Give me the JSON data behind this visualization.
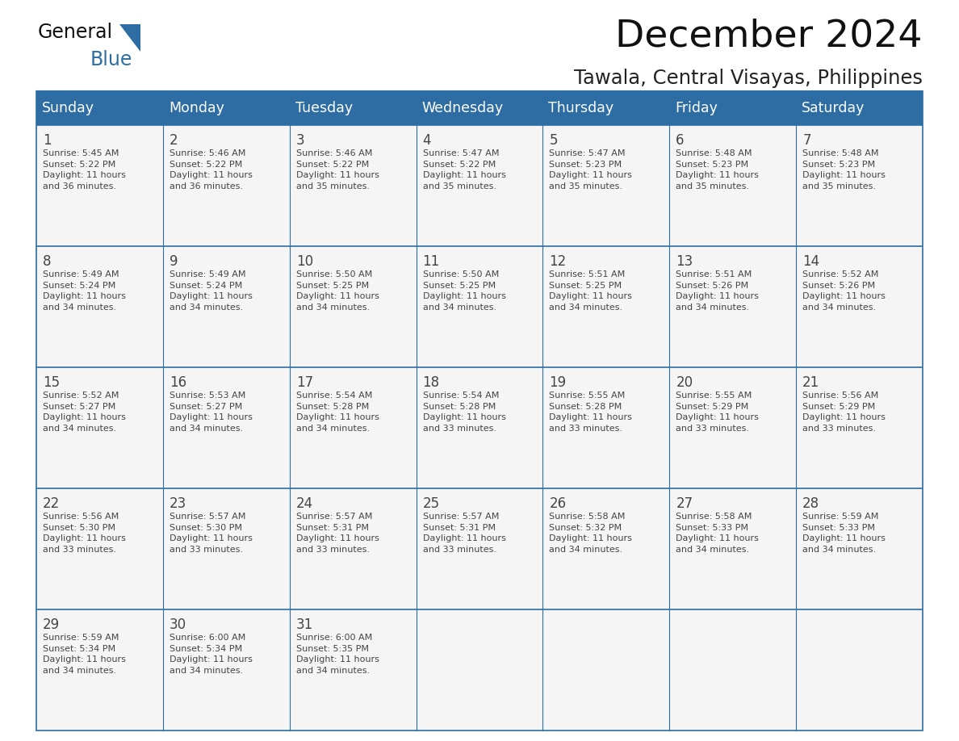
{
  "title": "December 2024",
  "subtitle": "Tawala, Central Visayas, Philippines",
  "header_bg_color": "#2d6da3",
  "header_text_color": "#ffffff",
  "bg_color": "#ffffff",
  "cell_bg": "#f5f5f5",
  "day_names": [
    "Sunday",
    "Monday",
    "Tuesday",
    "Wednesday",
    "Thursday",
    "Friday",
    "Saturday"
  ],
  "text_color": "#444444",
  "line_color": "#2d6da3",
  "days": [
    {
      "day": 1,
      "col": 0,
      "row": 0,
      "sunrise": "5:45 AM",
      "sunset": "5:22 PM",
      "daylight": "11 hours and 36 minutes."
    },
    {
      "day": 2,
      "col": 1,
      "row": 0,
      "sunrise": "5:46 AM",
      "sunset": "5:22 PM",
      "daylight": "11 hours and 36 minutes."
    },
    {
      "day": 3,
      "col": 2,
      "row": 0,
      "sunrise": "5:46 AM",
      "sunset": "5:22 PM",
      "daylight": "11 hours and 35 minutes."
    },
    {
      "day": 4,
      "col": 3,
      "row": 0,
      "sunrise": "5:47 AM",
      "sunset": "5:22 PM",
      "daylight": "11 hours and 35 minutes."
    },
    {
      "day": 5,
      "col": 4,
      "row": 0,
      "sunrise": "5:47 AM",
      "sunset": "5:23 PM",
      "daylight": "11 hours and 35 minutes."
    },
    {
      "day": 6,
      "col": 5,
      "row": 0,
      "sunrise": "5:48 AM",
      "sunset": "5:23 PM",
      "daylight": "11 hours and 35 minutes."
    },
    {
      "day": 7,
      "col": 6,
      "row": 0,
      "sunrise": "5:48 AM",
      "sunset": "5:23 PM",
      "daylight": "11 hours and 35 minutes."
    },
    {
      "day": 8,
      "col": 0,
      "row": 1,
      "sunrise": "5:49 AM",
      "sunset": "5:24 PM",
      "daylight": "11 hours and 34 minutes."
    },
    {
      "day": 9,
      "col": 1,
      "row": 1,
      "sunrise": "5:49 AM",
      "sunset": "5:24 PM",
      "daylight": "11 hours and 34 minutes."
    },
    {
      "day": 10,
      "col": 2,
      "row": 1,
      "sunrise": "5:50 AM",
      "sunset": "5:25 PM",
      "daylight": "11 hours and 34 minutes."
    },
    {
      "day": 11,
      "col": 3,
      "row": 1,
      "sunrise": "5:50 AM",
      "sunset": "5:25 PM",
      "daylight": "11 hours and 34 minutes."
    },
    {
      "day": 12,
      "col": 4,
      "row": 1,
      "sunrise": "5:51 AM",
      "sunset": "5:25 PM",
      "daylight": "11 hours and 34 minutes."
    },
    {
      "day": 13,
      "col": 5,
      "row": 1,
      "sunrise": "5:51 AM",
      "sunset": "5:26 PM",
      "daylight": "11 hours and 34 minutes."
    },
    {
      "day": 14,
      "col": 6,
      "row": 1,
      "sunrise": "5:52 AM",
      "sunset": "5:26 PM",
      "daylight": "11 hours and 34 minutes."
    },
    {
      "day": 15,
      "col": 0,
      "row": 2,
      "sunrise": "5:52 AM",
      "sunset": "5:27 PM",
      "daylight": "11 hours and 34 minutes."
    },
    {
      "day": 16,
      "col": 1,
      "row": 2,
      "sunrise": "5:53 AM",
      "sunset": "5:27 PM",
      "daylight": "11 hours and 34 minutes."
    },
    {
      "day": 17,
      "col": 2,
      "row": 2,
      "sunrise": "5:54 AM",
      "sunset": "5:28 PM",
      "daylight": "11 hours and 34 minutes."
    },
    {
      "day": 18,
      "col": 3,
      "row": 2,
      "sunrise": "5:54 AM",
      "sunset": "5:28 PM",
      "daylight": "11 hours and 33 minutes."
    },
    {
      "day": 19,
      "col": 4,
      "row": 2,
      "sunrise": "5:55 AM",
      "sunset": "5:28 PM",
      "daylight": "11 hours and 33 minutes."
    },
    {
      "day": 20,
      "col": 5,
      "row": 2,
      "sunrise": "5:55 AM",
      "sunset": "5:29 PM",
      "daylight": "11 hours and 33 minutes."
    },
    {
      "day": 21,
      "col": 6,
      "row": 2,
      "sunrise": "5:56 AM",
      "sunset": "5:29 PM",
      "daylight": "11 hours and 33 minutes."
    },
    {
      "day": 22,
      "col": 0,
      "row": 3,
      "sunrise": "5:56 AM",
      "sunset": "5:30 PM",
      "daylight": "11 hours and 33 minutes."
    },
    {
      "day": 23,
      "col": 1,
      "row": 3,
      "sunrise": "5:57 AM",
      "sunset": "5:30 PM",
      "daylight": "11 hours and 33 minutes."
    },
    {
      "day": 24,
      "col": 2,
      "row": 3,
      "sunrise": "5:57 AM",
      "sunset": "5:31 PM",
      "daylight": "11 hours and 33 minutes."
    },
    {
      "day": 25,
      "col": 3,
      "row": 3,
      "sunrise": "5:57 AM",
      "sunset": "5:31 PM",
      "daylight": "11 hours and 33 minutes."
    },
    {
      "day": 26,
      "col": 4,
      "row": 3,
      "sunrise": "5:58 AM",
      "sunset": "5:32 PM",
      "daylight": "11 hours and 34 minutes."
    },
    {
      "day": 27,
      "col": 5,
      "row": 3,
      "sunrise": "5:58 AM",
      "sunset": "5:33 PM",
      "daylight": "11 hours and 34 minutes."
    },
    {
      "day": 28,
      "col": 6,
      "row": 3,
      "sunrise": "5:59 AM",
      "sunset": "5:33 PM",
      "daylight": "11 hours and 34 minutes."
    },
    {
      "day": 29,
      "col": 0,
      "row": 4,
      "sunrise": "5:59 AM",
      "sunset": "5:34 PM",
      "daylight": "11 hours and 34 minutes."
    },
    {
      "day": 30,
      "col": 1,
      "row": 4,
      "sunrise": "6:00 AM",
      "sunset": "5:34 PM",
      "daylight": "11 hours and 34 minutes."
    },
    {
      "day": 31,
      "col": 2,
      "row": 4,
      "sunrise": "6:00 AM",
      "sunset": "5:35 PM",
      "daylight": "11 hours and 34 minutes."
    }
  ]
}
